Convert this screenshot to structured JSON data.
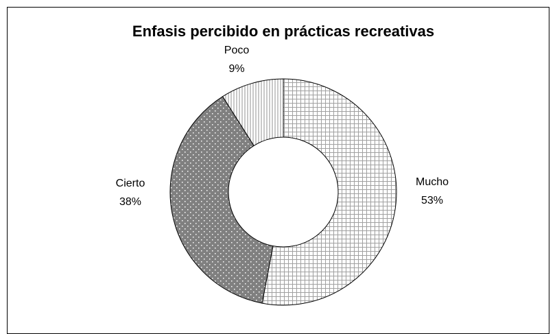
{
  "chart_data": {
    "type": "donut",
    "title": "Enfasis percibido en prácticas recreativas",
    "categories": [
      "Mucho",
      "Cierto",
      "Poco"
    ],
    "values": [
      53,
      38,
      9
    ],
    "value_labels": [
      "53%",
      "38%",
      "9%"
    ],
    "colors": [
      "#a0a0a0",
      "#808080",
      "#909090"
    ]
  }
}
